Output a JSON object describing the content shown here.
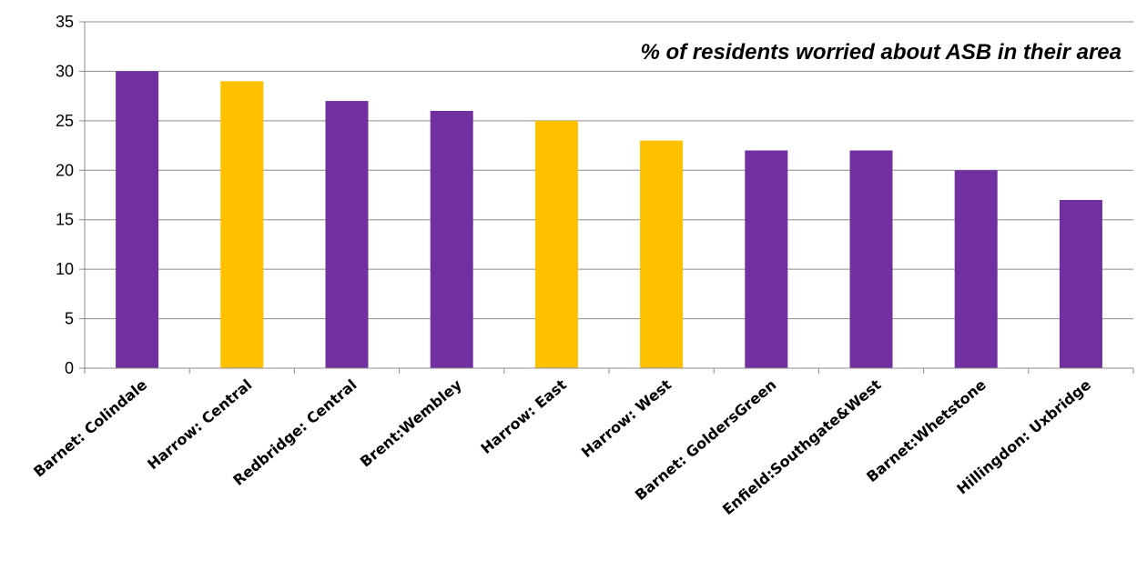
{
  "chart_data": {
    "type": "bar",
    "title": "% of residents worried about ASB in their area",
    "xlabel": "",
    "ylabel": "",
    "categories": [
      "Barnet: Colindale",
      "Harrow: Central",
      "Redbridge: Central",
      "Brent:Wembley",
      "Harrow: East",
      "Harrow: West",
      "Barnet: GoldersGreen",
      "Enfield:Southgate&West",
      "Barnet:Whetstone",
      "Hillingdon: Uxbridge"
    ],
    "values": [
      30,
      29,
      27,
      26,
      25,
      23,
      22,
      22,
      20,
      17
    ],
    "bar_colors": [
      "#7030a0",
      "#ffc000",
      "#7030a0",
      "#7030a0",
      "#ffc000",
      "#ffc000",
      "#7030a0",
      "#7030a0",
      "#7030a0",
      "#7030a0"
    ],
    "ylim": [
      0,
      35
    ],
    "yticks": [
      0,
      5,
      10,
      15,
      20,
      25,
      30,
      35
    ],
    "grid": true,
    "legend": "none"
  }
}
